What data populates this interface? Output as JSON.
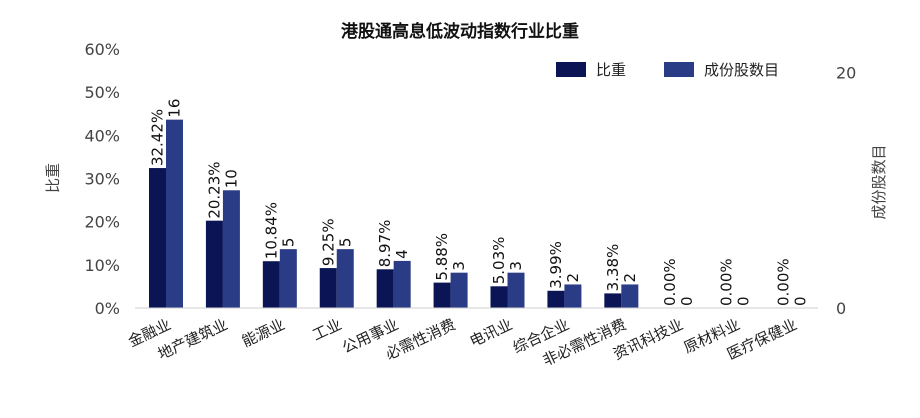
{
  "chart_data": {
    "type": "bar",
    "title": "港股通高息低波动指数行业比重",
    "categories": [
      "金融业",
      "地产建筑业",
      "能源业",
      "工业",
      "公用事业",
      "必需性消费",
      "电讯业",
      "综合企业",
      "非必需性消费",
      "资讯科技业",
      "原材料业",
      "医疗保健业"
    ],
    "series": [
      {
        "name": "比重",
        "axis": "left",
        "color": "#0b1556",
        "values": [
          32.42,
          20.23,
          10.84,
          9.25,
          8.97,
          5.88,
          5.03,
          3.99,
          3.38,
          0.0,
          0.0,
          0.0
        ],
        "labels": [
          "32.42%",
          "20.23%",
          "10.84%",
          "9.25%",
          "8.97%",
          "5.88%",
          "5.03%",
          "3.99%",
          "3.38%",
          "0.00%",
          "0.00%",
          "0.00%"
        ]
      },
      {
        "name": "成份股数目",
        "axis": "right",
        "color": "#2b3c86",
        "values": [
          16,
          10,
          5,
          5,
          4,
          3,
          3,
          2,
          2,
          0,
          0,
          0
        ],
        "labels": [
          "16",
          "10",
          "5",
          "5",
          "4",
          "3",
          "3",
          "2",
          "2",
          "0",
          "0",
          "0"
        ]
      }
    ],
    "ylabel": "比重",
    "y2label": "成份股数目",
    "ylim": [
      0,
      60
    ],
    "y2lim": [
      0,
      22
    ],
    "yticks": [
      "0%",
      "10%",
      "20%",
      "30%",
      "40%",
      "50%",
      "60%"
    ],
    "yticks_values": [
      0,
      10,
      20,
      30,
      40,
      50,
      60
    ],
    "y2ticks": [
      "0",
      "20"
    ],
    "y2ticks_values": [
      0,
      20
    ],
    "legend_position": "top-right",
    "grid": false
  }
}
